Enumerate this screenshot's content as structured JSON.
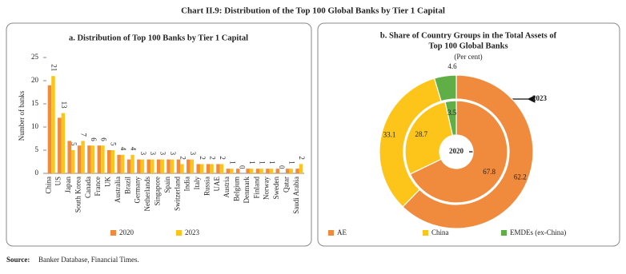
{
  "title": "Chart II.9: Distribution of the Top 100 Global Banks by Tier 1 Capital",
  "source_label": "Source:",
  "source": "Banker Database, Financial Times.",
  "chart_data": [
    {
      "type": "bar",
      "title": "a. Distribution of Top 100 Banks by Tier 1 Capital",
      "y_label": "Number of banks",
      "categories": [
        "China",
        "US",
        "Japan",
        "South Korea",
        "Canada",
        "France",
        "UK",
        "Australia",
        "Brazil",
        "Germany",
        "Netherlands",
        "Singapore",
        "Spain",
        "Switzerland",
        "India",
        "Italy",
        "Russia",
        "UAE",
        "Austria",
        "Belgium",
        "Denmark",
        "Finland",
        "Norway",
        "Sweden",
        "Qatar",
        "Saudi Arabia"
      ],
      "series": [
        {
          "name": "2020",
          "color": "#f08a3c",
          "show_labels": false,
          "values": [
            19,
            12,
            7,
            6,
            6,
            6,
            5,
            4,
            3,
            3,
            3,
            3,
            3,
            3,
            3,
            2,
            2,
            2,
            1,
            1,
            1,
            1,
            1,
            1,
            1,
            1
          ]
        },
        {
          "name": "2023",
          "color": "#fdc51a",
          "show_labels": true,
          "values": [
            21,
            13,
            5,
            7,
            6,
            6,
            5,
            4,
            4,
            3,
            3,
            3,
            3,
            2,
            3,
            2,
            2,
            2,
            1,
            0,
            1,
            1,
            1,
            0,
            1,
            2
          ]
        }
      ],
      "ylim": [
        0,
        25
      ],
      "yticks": [
        0,
        5,
        10,
        15,
        20,
        25
      ],
      "grid": false
    },
    {
      "type": "donut",
      "title": [
        "b. Share of Country Groups in the Total Assets of",
        "Top 100 Global Banks"
      ],
      "subtitle": "(Per cent)",
      "categories": [
        "AE",
        "China",
        "EMDEs (ex-China)"
      ],
      "colors": [
        "#f08a3c",
        "#fdc51a",
        "#5fae46"
      ],
      "series": [
        {
          "name": "2020",
          "values": [
            67.8,
            28.7,
            3.5
          ]
        },
        {
          "name": "2023",
          "values": [
            62.2,
            33.1,
            4.6
          ]
        }
      ]
    }
  ]
}
